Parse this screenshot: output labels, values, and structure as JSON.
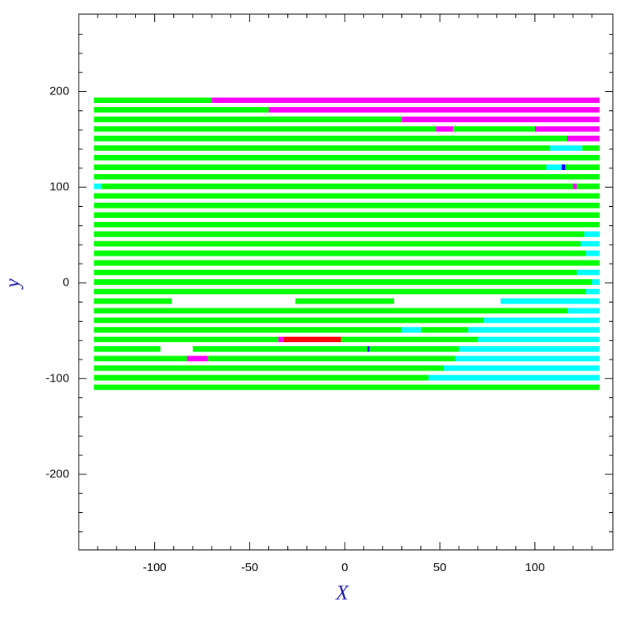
{
  "chart_data": {
    "type": "strips",
    "xlabel": "X",
    "ylabel": "y",
    "xlim": [
      -140,
      141
    ],
    "ylim": [
      -279,
      281
    ],
    "xticks": [
      -100,
      -50,
      0,
      50,
      100
    ],
    "yticks": [
      -200,
      -100,
      0,
      100,
      200
    ],
    "xminor": [
      -130,
      -120,
      -110,
      -90,
      -80,
      -70,
      -60,
      -40,
      -30,
      -20,
      -10,
      10,
      20,
      30,
      40,
      60,
      70,
      80,
      90,
      110,
      120,
      130
    ],
    "yminor": [
      -260,
      -240,
      -220,
      -180,
      -160,
      -140,
      -120,
      -80,
      -60,
      -40,
      -20,
      20,
      40,
      60,
      80,
      120,
      140,
      160,
      180,
      220,
      240,
      260
    ],
    "rows": [
      {
        "y": 191,
        "segments": [
          [
            -132,
            -70,
            "#00ff00"
          ],
          [
            -70,
            134,
            "#ff00ff"
          ]
        ]
      },
      {
        "y": 181,
        "segments": [
          [
            -132,
            -40,
            "#00ff00"
          ],
          [
            -40,
            134,
            "#ff00ff"
          ]
        ]
      },
      {
        "y": 171,
        "segments": [
          [
            -132,
            30,
            "#00ff00"
          ],
          [
            30,
            134,
            "#ff00ff"
          ]
        ]
      },
      {
        "y": 161,
        "segments": [
          [
            -132,
            48,
            "#00ff00"
          ],
          [
            48,
            57,
            "#ff00ff"
          ],
          [
            57,
            100,
            "#00ff00"
          ],
          [
            100,
            134,
            "#ff00ff"
          ]
        ]
      },
      {
        "y": 151,
        "segments": [
          [
            -132,
            117,
            "#00ff00"
          ],
          [
            117,
            134,
            "#ff00ff"
          ]
        ]
      },
      {
        "y": 141,
        "segments": [
          [
            -132,
            108,
            "#00ff00"
          ],
          [
            108,
            125,
            "#00ffff"
          ],
          [
            125,
            134,
            "#00ff00"
          ]
        ]
      },
      {
        "y": 131,
        "segments": [
          [
            -132,
            134,
            "#00ff00"
          ]
        ]
      },
      {
        "y": 121,
        "segments": [
          [
            -132,
            106,
            "#00ff00"
          ],
          [
            106,
            114,
            "#00ffff"
          ],
          [
            114,
            116,
            "#0000ff"
          ],
          [
            116,
            134,
            "#00ff00"
          ]
        ]
      },
      {
        "y": 111,
        "segments": [
          [
            -132,
            134,
            "#00ff00"
          ]
        ]
      },
      {
        "y": 101,
        "segments": [
          [
            -132,
            -128,
            "#00ffff"
          ],
          [
            -128,
            120,
            "#00ff00"
          ],
          [
            120,
            122,
            "#ff00ff"
          ],
          [
            122,
            134,
            "#00ff00"
          ]
        ]
      },
      {
        "y": 91,
        "segments": [
          [
            -132,
            134,
            "#00ff00"
          ]
        ]
      },
      {
        "y": 81,
        "segments": [
          [
            -132,
            134,
            "#00ff00"
          ]
        ]
      },
      {
        "y": 71,
        "segments": [
          [
            -132,
            134,
            "#00ff00"
          ]
        ]
      },
      {
        "y": 61,
        "segments": [
          [
            -132,
            134,
            "#00ff00"
          ]
        ]
      },
      {
        "y": 51,
        "segments": [
          [
            -132,
            126,
            "#00ff00"
          ],
          [
            126,
            134,
            "#00ffff"
          ]
        ]
      },
      {
        "y": 41,
        "segments": [
          [
            -132,
            124,
            "#00ff00"
          ],
          [
            124,
            134,
            "#00ffff"
          ]
        ]
      },
      {
        "y": 31,
        "segments": [
          [
            -132,
            127,
            "#00ff00"
          ],
          [
            127,
            134,
            "#00ffff"
          ]
        ]
      },
      {
        "y": 21,
        "segments": [
          [
            -132,
            134,
            "#00ff00"
          ]
        ]
      },
      {
        "y": 11,
        "segments": [
          [
            -132,
            122,
            "#00ff00"
          ],
          [
            122,
            134,
            "#00ffff"
          ]
        ]
      },
      {
        "y": 1,
        "segments": [
          [
            -132,
            130,
            "#00ff00"
          ],
          [
            130,
            134,
            "#00ffff"
          ]
        ]
      },
      {
        "y": -9,
        "segments": [
          [
            -132,
            127,
            "#00ff00"
          ],
          [
            127,
            134,
            "#00ffff"
          ]
        ]
      },
      {
        "y": -19,
        "segments": [
          [
            -132,
            -91,
            "#00ff00"
          ],
          [
            -26,
            26,
            "#00ff00"
          ],
          [
            82,
            134,
            "#00ffff"
          ]
        ]
      },
      {
        "y": -29,
        "segments": [
          [
            -132,
            117,
            "#00ff00"
          ],
          [
            117,
            134,
            "#00ffff"
          ]
        ]
      },
      {
        "y": -39,
        "segments": [
          [
            -132,
            73,
            "#00ff00"
          ],
          [
            73,
            134,
            "#00ffff"
          ]
        ]
      },
      {
        "y": -49,
        "segments": [
          [
            -132,
            30,
            "#00ff00"
          ],
          [
            30,
            40,
            "#00ffff"
          ],
          [
            40,
            65,
            "#00ff00"
          ],
          [
            65,
            134,
            "#00ffff"
          ]
        ]
      },
      {
        "y": -59,
        "segments": [
          [
            -132,
            -35,
            "#00ff00"
          ],
          [
            -35,
            -32,
            "#ff00ff"
          ],
          [
            -32,
            -2,
            "#ff0000"
          ],
          [
            -2,
            70,
            "#00ff00"
          ],
          [
            70,
            134,
            "#00ffff"
          ]
        ]
      },
      {
        "y": -69,
        "segments": [
          [
            -132,
            -97,
            "#00ff00"
          ],
          [
            -80,
            12,
            "#00ff00"
          ],
          [
            12,
            13,
            "#0000ff"
          ],
          [
            13,
            60,
            "#00ff00"
          ],
          [
            60,
            134,
            "#00ffff"
          ]
        ]
      },
      {
        "y": -79,
        "segments": [
          [
            -132,
            -83,
            "#00ff00"
          ],
          [
            -83,
            -72,
            "#ff00ff"
          ],
          [
            -72,
            58,
            "#00ff00"
          ],
          [
            58,
            134,
            "#00ffff"
          ]
        ]
      },
      {
        "y": -89,
        "segments": [
          [
            -132,
            52,
            "#00ff00"
          ],
          [
            52,
            134,
            "#00ffff"
          ]
        ]
      },
      {
        "y": -99,
        "segments": [
          [
            -132,
            44,
            "#00ff00"
          ],
          [
            44,
            134,
            "#00ffff"
          ]
        ]
      },
      {
        "y": -109,
        "segments": [
          [
            -132,
            134,
            "#00ff00"
          ]
        ]
      }
    ]
  }
}
